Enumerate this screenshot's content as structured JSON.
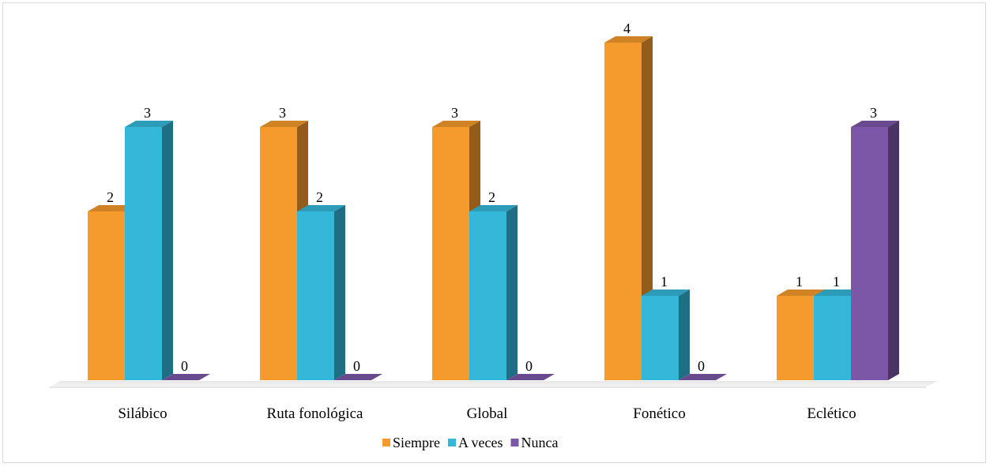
{
  "chart_data": {
    "type": "bar",
    "categories": [
      "Silábico",
      "Ruta fonológica",
      "Global",
      "Fonético",
      "Eclético"
    ],
    "series": [
      {
        "name": "Siempre",
        "values": [
          2,
          3,
          3,
          4,
          1
        ],
        "color": "#F59A2C"
      },
      {
        "name": "A veces",
        "values": [
          3,
          2,
          2,
          1,
          1
        ],
        "color": "#35B7DA"
      },
      {
        "name": "Nunca",
        "values": [
          0,
          0,
          0,
          0,
          3
        ],
        "color": "#7C57A8"
      }
    ],
    "ylim": [
      0,
      4
    ],
    "grid": false,
    "legend_position": "bottom",
    "data_labels": true,
    "style": "3d-column"
  }
}
